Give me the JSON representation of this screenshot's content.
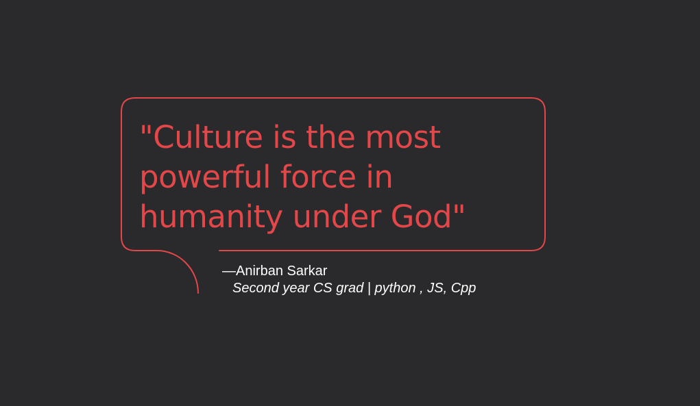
{
  "quote": {
    "text": "\"Culture is the most powerful force in humanity under God\"",
    "author": "—Anirban Sarkar",
    "bio": "Second year CS grad | python , JS, Cpp"
  },
  "colors": {
    "background": "#2a2a2c",
    "accent": "#e2474a",
    "text": "#ffffff"
  }
}
